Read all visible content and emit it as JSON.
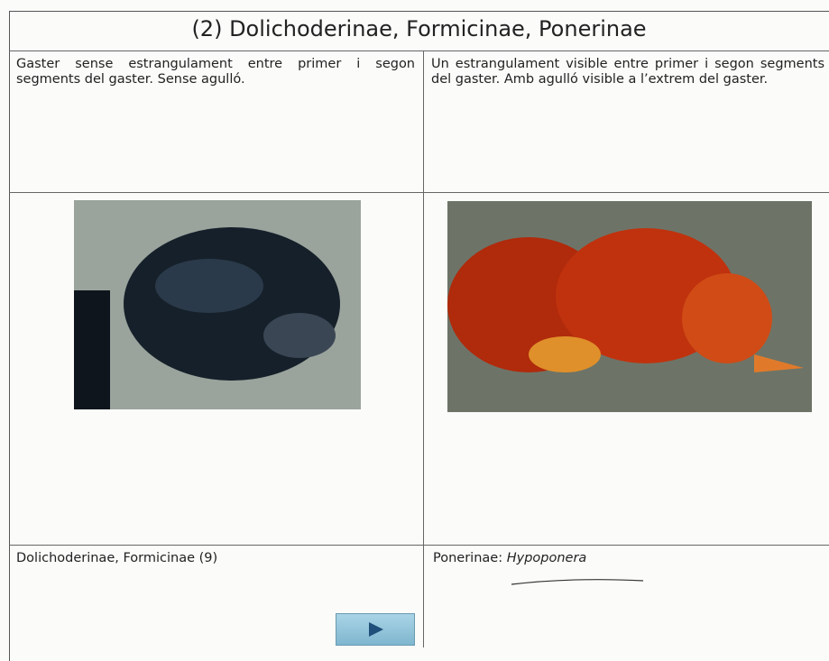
{
  "title": "(2) Dolichoderinae, Formicinae, Ponerinae",
  "table": {
    "descriptions": [
      "Gaster sense estrangulament entre primer i segon segments del gaster. Sense agulló.",
      "Un estrangulament visible entre primer i segon segments del gaster. Amb agulló visible a l’extrem del gaster."
    ],
    "results": [
      {
        "text": "Dolichoderinae, Formicinae (9)"
      },
      {
        "text": "Ponerinae:",
        "genus": "Hypoponera"
      }
    ]
  }
}
